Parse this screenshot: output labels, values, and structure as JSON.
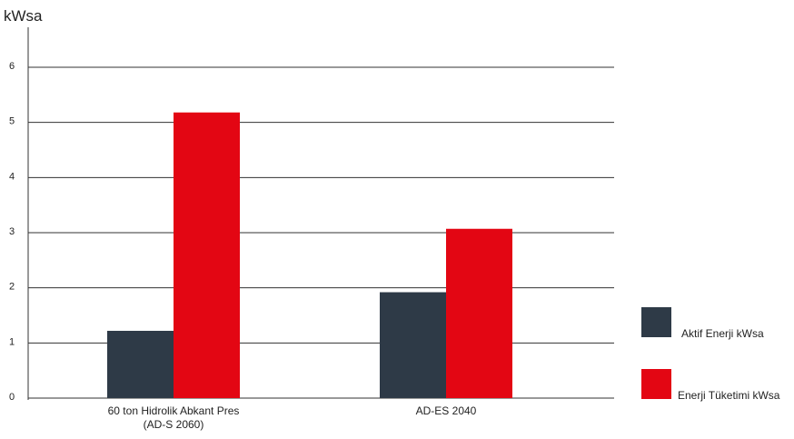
{
  "chart_data": {
    "type": "bar",
    "ylabel": "kWsa",
    "xlabel": "",
    "title": "",
    "ylim": [
      0,
      6
    ],
    "yticks": [
      0,
      1,
      2,
      3,
      4,
      5,
      6
    ],
    "grid": true,
    "legend_position": "bottom-right",
    "categories": [
      [
        "60 ton Hidrolik Abkant Pres",
        "(AD-S 2060)"
      ],
      [
        "AD-ES 2040"
      ]
    ],
    "series": [
      {
        "name": "Aktif Enerji kWsa",
        "color": "#2e3a47",
        "values": [
          1.22,
          1.92
        ]
      },
      {
        "name": "Enerji Tüketimi kWsa",
        "color": "#e30613",
        "values": [
          5.18,
          3.07
        ]
      }
    ]
  }
}
